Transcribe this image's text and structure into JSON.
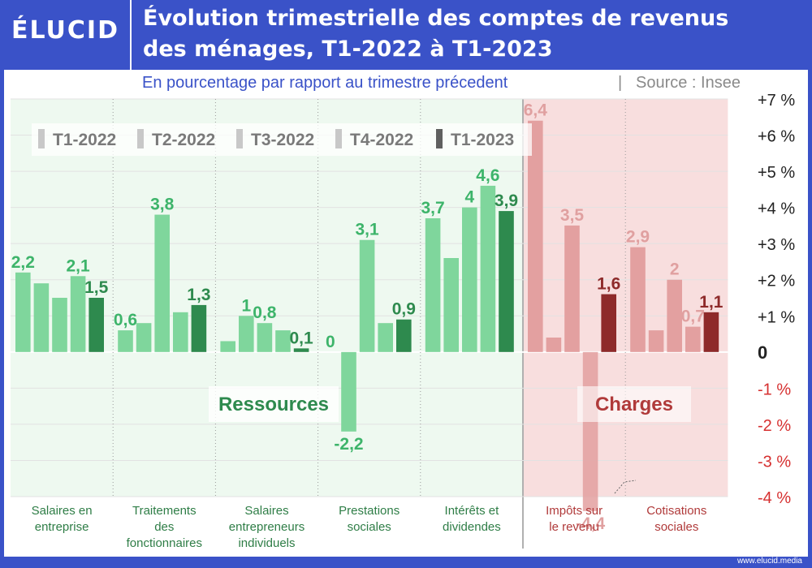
{
  "header": {
    "logo": "ÉLUCID",
    "title_line1": "Évolution trimestrielle des comptes de revenus",
    "title_line2": "des ménages, T1-2022 à T1-2023"
  },
  "subtitle": "En pourcentage par rapport au trimestre précedent",
  "source": "Source : Insee",
  "footer": "www.elucid.media",
  "colors": {
    "resource_light": "#7fd69c",
    "resource_dark": "#2e8a4e",
    "resource_text": "#3db46a",
    "charge_light": "#e3a0a0",
    "charge_dark": "#8e2a2a",
    "charge_text": "#e0a0a0",
    "resource_bg": "#eef9f0",
    "charge_bg": "#f8dede",
    "axis_neg": "#d63030"
  },
  "chart_data": {
    "type": "bar",
    "ylabel": "",
    "ylim": [
      -4,
      7
    ],
    "y_ticks": [
      {
        "v": 7,
        "label": "+7 %"
      },
      {
        "v": 6,
        "label": "+6 %"
      },
      {
        "v": 5,
        "label": "+5 %"
      },
      {
        "v": 4,
        "label": "+4 %"
      },
      {
        "v": 3,
        "label": "+3 %"
      },
      {
        "v": 2,
        "label": "+2 %"
      },
      {
        "v": 1,
        "label": "+1 %"
      },
      {
        "v": 0,
        "label": "0"
      },
      {
        "v": -1,
        "label": "-1 %"
      },
      {
        "v": -2,
        "label": "-2 %"
      },
      {
        "v": -3,
        "label": "-3 %"
      },
      {
        "v": -4,
        "label": "-4 %"
      }
    ],
    "legend": [
      "T1-2022",
      "T2-2022",
      "T3-2022",
      "T4-2022",
      "T1-2023"
    ],
    "legend_position": "top-left",
    "group_labels": {
      "resources": "Ressources",
      "charges": "Charges"
    },
    "categories": [
      {
        "name": "Salaires en\nentreprise",
        "group": "resources",
        "values": [
          2.2,
          1.9,
          1.5,
          2.1,
          1.5
        ],
        "labels": [
          "2,2",
          "",
          "",
          "2,1",
          "1,5"
        ]
      },
      {
        "name": "Traitements\ndes\nfonctionnaires",
        "group": "resources",
        "values": [
          0.6,
          0.8,
          3.8,
          1.1,
          1.3
        ],
        "labels": [
          "0,6",
          "",
          "3,8",
          "",
          "1,3"
        ]
      },
      {
        "name": "Salaires\nentrepreneurs\nindividuels",
        "group": "resources",
        "values": [
          0.3,
          1.0,
          0.8,
          0.6,
          0.1
        ],
        "labels": [
          "",
          "1",
          "0,8",
          "",
          "0,1"
        ]
      },
      {
        "name": "Prestations\nsociales",
        "group": "resources",
        "values": [
          0,
          -2.2,
          3.1,
          0.8,
          0.9
        ],
        "labels": [
          "0",
          "-2,2",
          "3,1",
          "",
          "0,9"
        ]
      },
      {
        "name": "Intérêts et\ndividendes",
        "group": "resources",
        "values": [
          3.7,
          2.6,
          4,
          4.6,
          3.9
        ],
        "labels": [
          "3,7",
          "",
          "4",
          "4,6",
          "3,9"
        ]
      },
      {
        "name": "Impôts sur\nle revenu",
        "group": "charges",
        "values": [
          6.4,
          0.4,
          3.5,
          -4.4,
          1.6
        ],
        "labels": [
          "6,4",
          "",
          "3,5",
          "-4,4",
          "1,6"
        ]
      },
      {
        "name": "Cotisations\nsociales",
        "group": "charges",
        "values": [
          2.9,
          0.6,
          2,
          0.7,
          1.1
        ],
        "labels": [
          "2,9",
          "",
          "2",
          "0,7",
          "1,1"
        ]
      }
    ]
  }
}
